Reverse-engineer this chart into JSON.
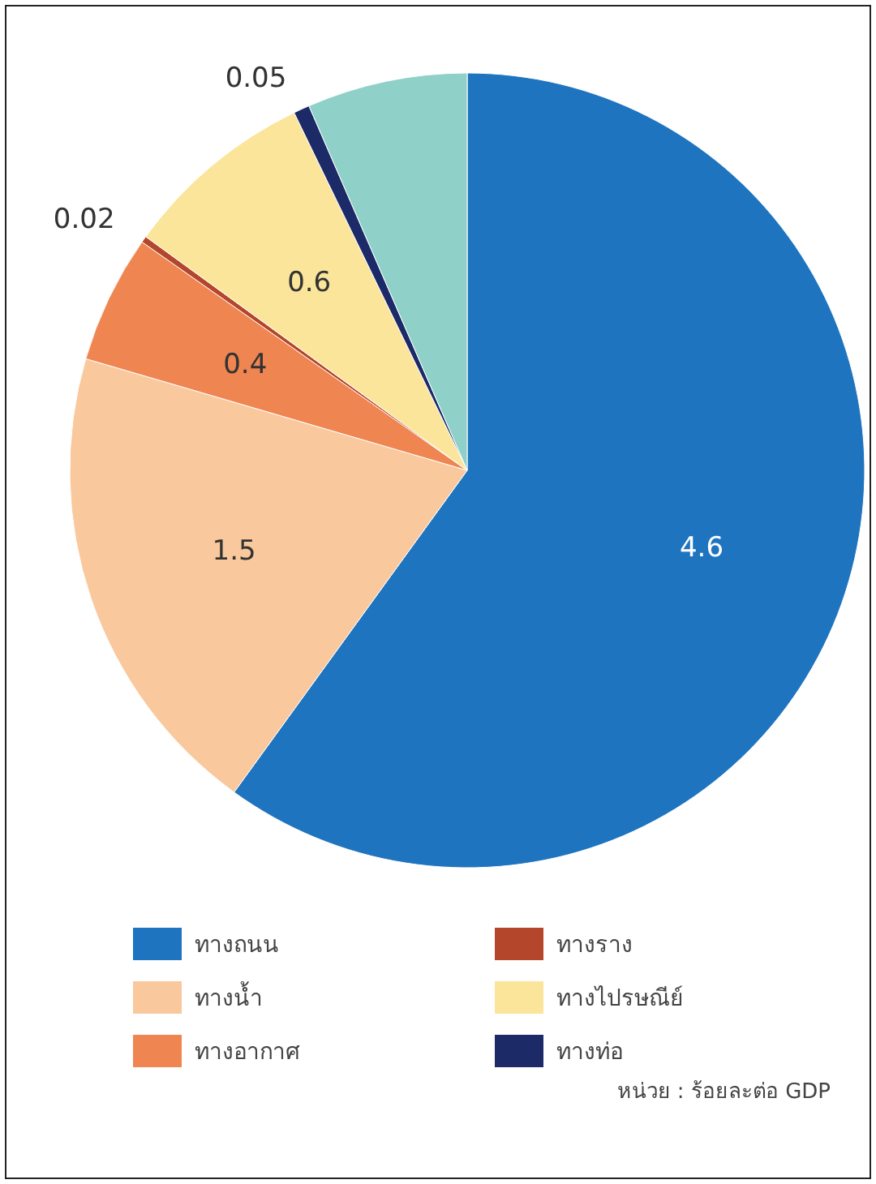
{
  "chart_data": {
    "type": "pie",
    "categories": [
      "ทางถนน",
      "ทางน้ำ",
      "ทางอากาศ",
      "ทางราง",
      "ทางไปรษณีย์",
      "ทางท่อ",
      null
    ],
    "values": [
      4.6,
      1.5,
      0.4,
      0.02,
      0.6,
      0.05,
      0.5
    ],
    "colors": [
      "#1f74bf",
      "#f9c89c",
      "#ef8550",
      "#b4462b",
      "#fbe59b",
      "#1c2a68",
      "#8fd1c9"
    ],
    "value_labels": [
      "4.6",
      "1.5",
      "0.4",
      "0.02",
      "0.6",
      "0.05",
      null
    ],
    "legend": "bottom",
    "annotations": [
      "หน่วย : ร้อยละต่อ GDP"
    ]
  }
}
